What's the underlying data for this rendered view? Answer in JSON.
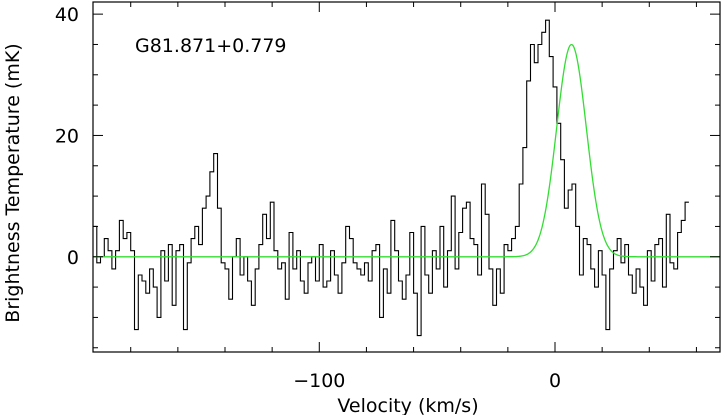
{
  "chart_data": {
    "type": "line",
    "title": "",
    "annotation": "G81.871+0.779",
    "xlabel": "Velocity (km/s)",
    "ylabel": "Brightness Temperature (mK)",
    "xlim": [
      -196,
      70
    ],
    "ylim": [
      -15.7,
      42
    ],
    "x_ticks": [
      -100,
      0
    ],
    "x_tick_labels": [
      "−100",
      "0"
    ],
    "y_ticks": [
      0,
      20,
      40
    ],
    "y_tick_labels": [
      "0",
      "20",
      "40"
    ],
    "grid": false,
    "legend": "none",
    "colors": {
      "spectrum": "#000000",
      "fit": "#33dd33",
      "axes": "#000000"
    },
    "series": [
      {
        "style": "step",
        "x_start": -196,
        "x_step": 1.6,
        "values": [
          5,
          -1,
          0,
          3,
          1,
          -2,
          1,
          6,
          3,
          4,
          1,
          -12,
          -3,
          -4,
          -6,
          -2,
          -5,
          -10,
          1,
          -4,
          2,
          -8,
          1,
          2,
          -12,
          -1,
          3,
          5,
          2,
          8,
          10,
          14,
          17,
          8,
          -1,
          -2,
          -7,
          0,
          3,
          -3,
          0,
          -4,
          -8,
          -2,
          2,
          7,
          3,
          9,
          1,
          -2,
          -1,
          -7,
          4,
          -2,
          1,
          -4,
          -6,
          -1,
          0,
          -4,
          2,
          -5,
          -4,
          1,
          -3,
          -6,
          -1,
          5,
          3,
          -1,
          -2,
          -3,
          -1,
          -4,
          1,
          2,
          -10,
          -2,
          -6,
          6,
          1,
          -4,
          -7,
          -3,
          4,
          -6,
          -13,
          5,
          -3,
          -6,
          1,
          -2,
          5,
          -5,
          1,
          10,
          -2,
          4,
          8,
          9,
          3,
          2,
          -3,
          12,
          7,
          -2,
          -8,
          -2,
          -6,
          2,
          1,
          3,
          5,
          12,
          18,
          29,
          35,
          32,
          35,
          37,
          39,
          33,
          28,
          22,
          16,
          8,
          11,
          12,
          5,
          -3,
          3,
          2,
          -2,
          -5,
          1,
          -3,
          -12,
          -2,
          1,
          3,
          -1,
          2,
          -3,
          -6,
          -2,
          -5,
          -8,
          1,
          -4,
          2,
          3,
          -5,
          7,
          -1,
          -2,
          4,
          6,
          9
        ]
      },
      {
        "style": "gaussian-fit",
        "amplitude": 35,
        "center": 7,
        "sigma": 6.3,
        "baseline": 0
      }
    ]
  }
}
